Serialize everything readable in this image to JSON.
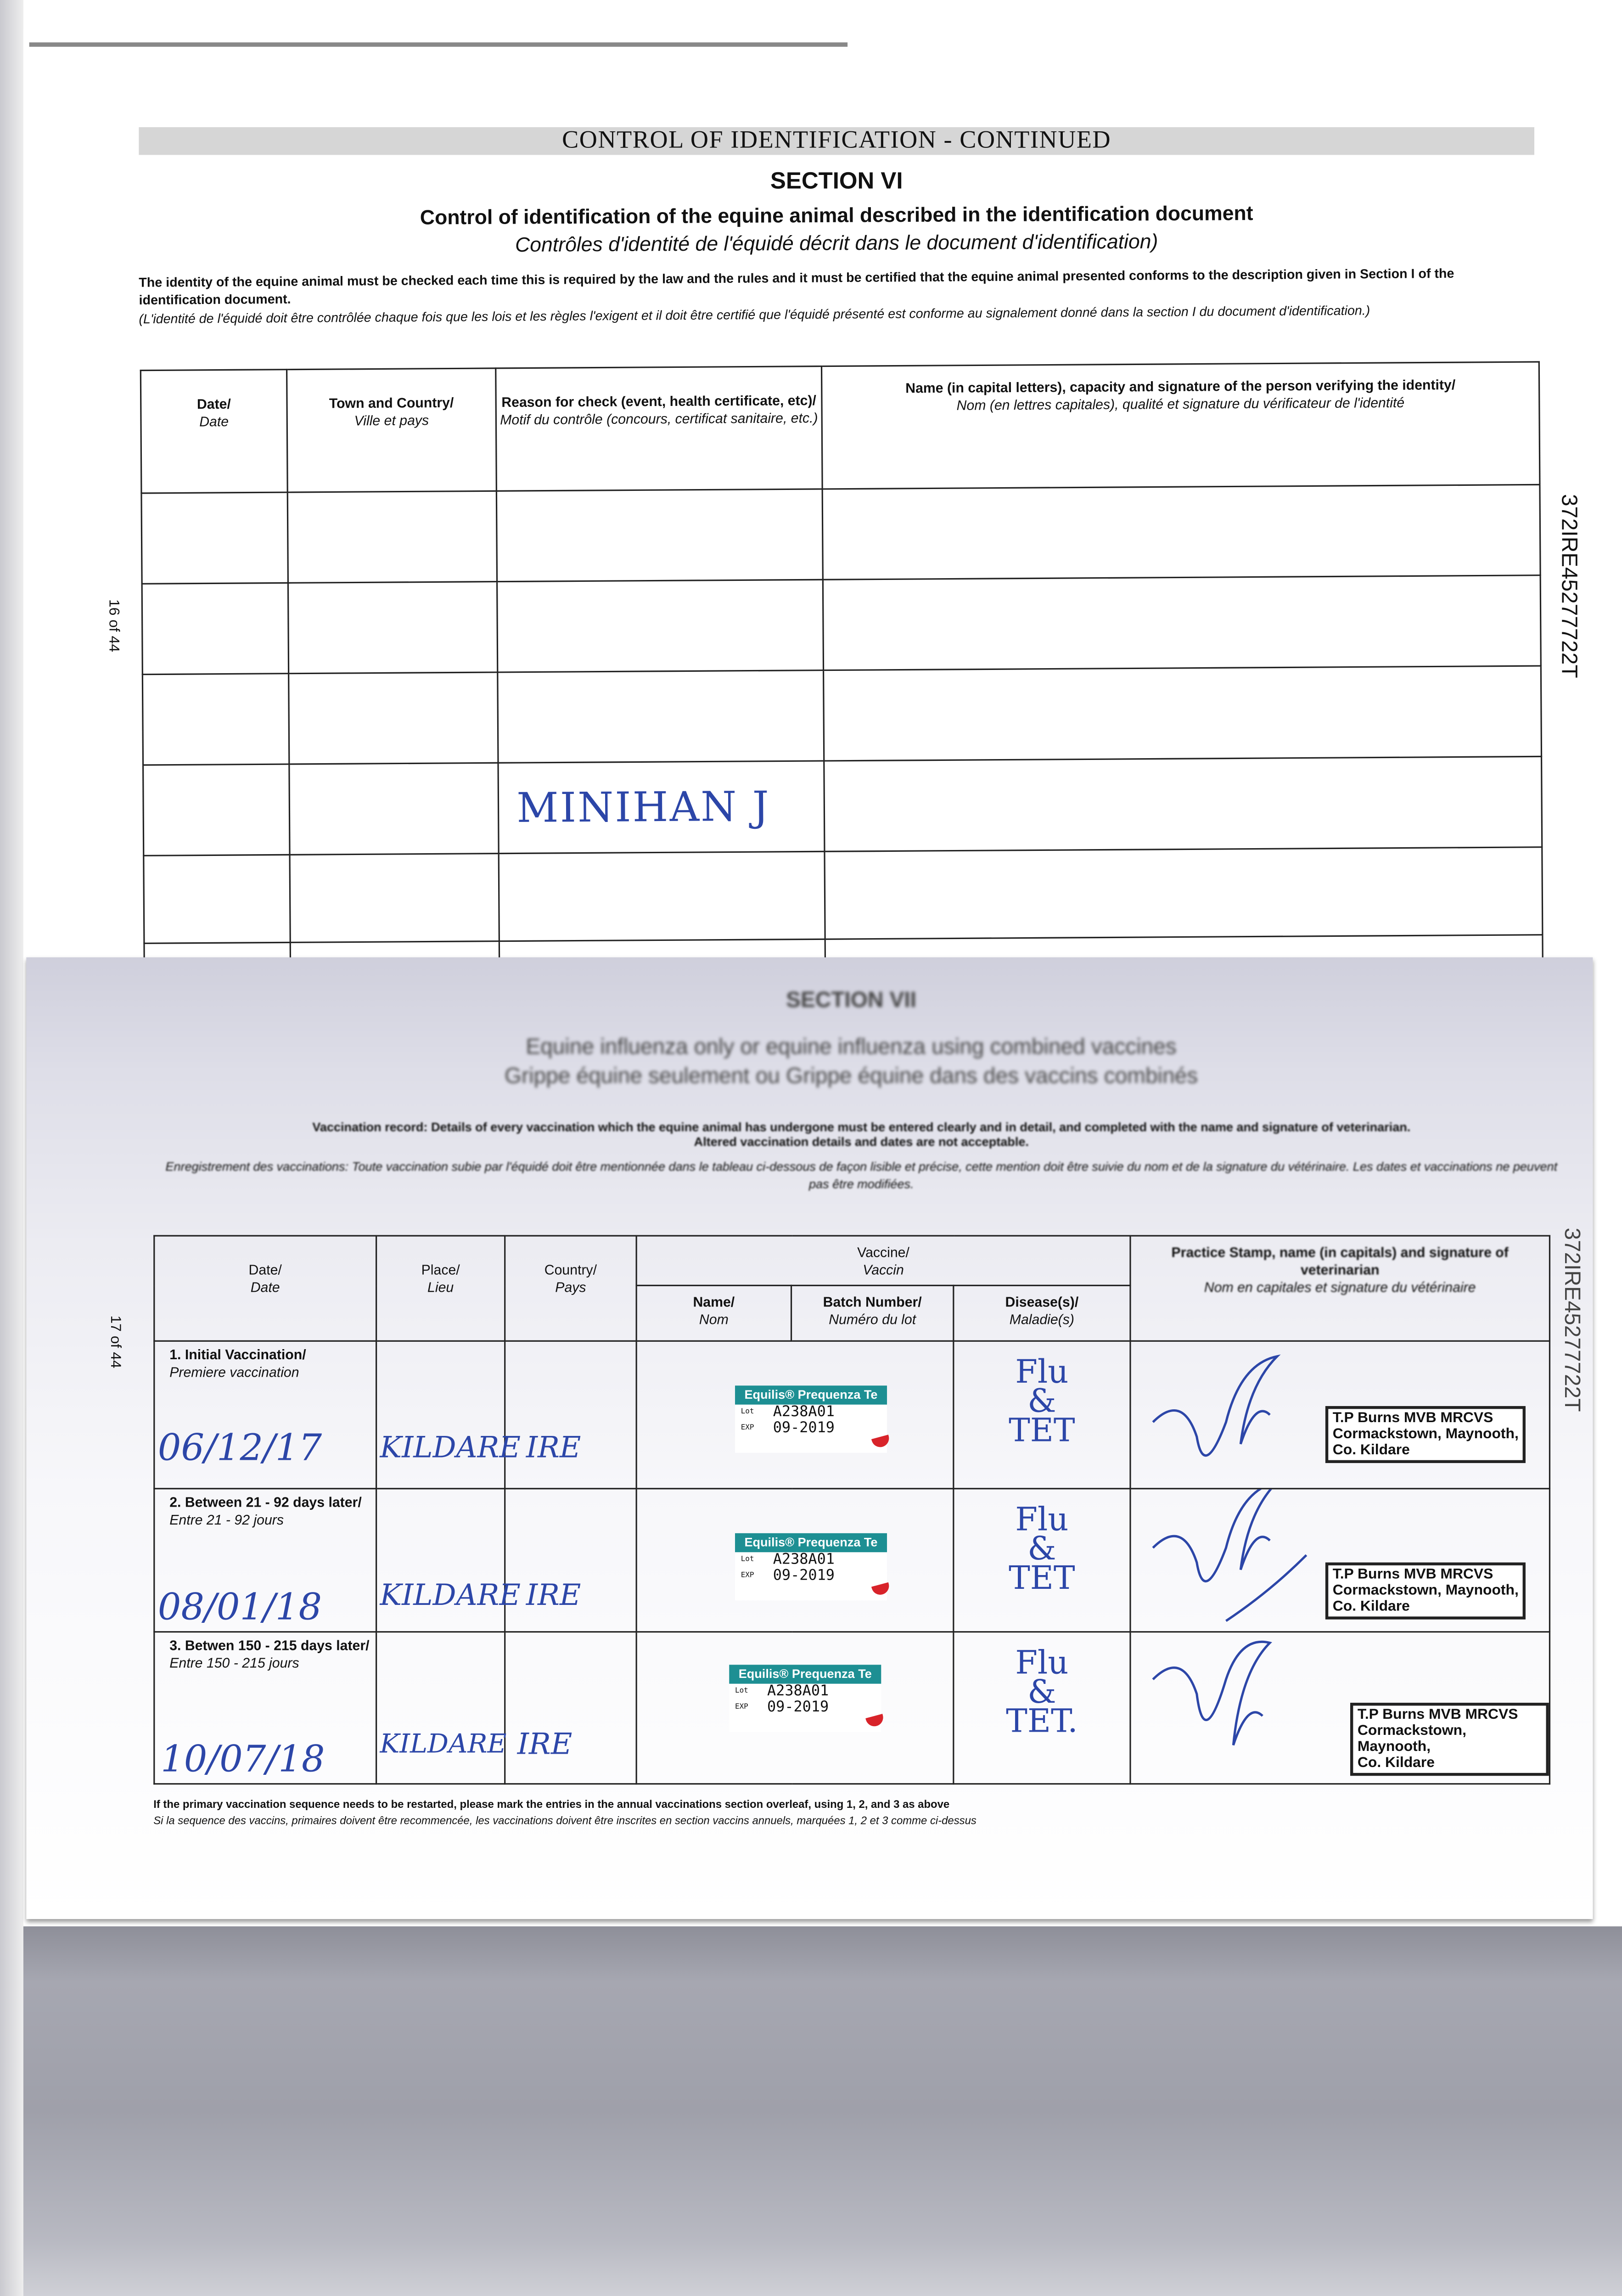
{
  "page1": {
    "banner": "CONTROL OF IDENTIFICATION - CONTINUED",
    "section": "SECTION VI",
    "title_en": "Control of identification of the equine animal described in the identification document",
    "title_fr": "Contrôles d'identité de l'équidé décrit dans le document d'identification)",
    "para_en": "The identity of the equine animal must be checked each time this is required by the law and the rules and it must be certified that the equine animal presented conforms to the description given in Section I of the identification document.",
    "para_fr": "(L'identité de l'équidé doit être contrôlée chaque fois que les lois et les règles l'exigent et il doit être certifié que l'équidé présenté est conforme au signalement donné dans la section I du document d'identification.)",
    "page_number": "16 of 44",
    "side_id": "372IRE45277722T",
    "columns": [
      {
        "en": "Date/",
        "fr": "Date"
      },
      {
        "en": "Town and Country/",
        "fr": "Ville et pays"
      },
      {
        "en": "Reason for check (event, health certificate, etc)/",
        "fr": "Motif du contrôle (concours, certificat sanitaire, etc.)"
      },
      {
        "en": "Name (in capital letters), capacity and signature of the person verifying the identity/",
        "fr": "Nom (en lettres capitales), qualité et signature du vérificateur de l'identité"
      }
    ],
    "handwritten_signature": "MINIHAN J"
  },
  "page2": {
    "section": "SECTION VII",
    "title_en": "Equine influenza only or equine influenza using combined vaccines",
    "title_fr": "Grippe équine seulement ou Grippe équine dans des vaccins combinés",
    "record_en_1": "Vaccination record: Details of every vaccination which the equine animal has undergone must be entered clearly and in detail, and completed with the name and signature of veterinarian.",
    "record_en_2": "Altered vaccination details and dates are not acceptable.",
    "record_fr": "Enregistrement des vaccinations: Toute vaccination subie par l'équidé doit être mentionnée dans le tableau ci-dessous de façon lisible et précise, cette mention doit être suivie du nom et de la signature du vétérinaire. Les dates et vaccinations ne peuvent pas être modifiées.",
    "page_number": "17 of 44",
    "side_id": "372IRE45277722T",
    "headers": {
      "date": {
        "en": "Date/",
        "fr": "Date"
      },
      "place": {
        "en": "Place/",
        "fr": "Lieu"
      },
      "country": {
        "en": "Country/",
        "fr": "Pays"
      },
      "vaccine": {
        "en": "Vaccine/",
        "fr": "Vaccin"
      },
      "name": {
        "en": "Name/",
        "fr": "Nom"
      },
      "batch": {
        "en": "Batch Number/",
        "fr": "Numéro du lot"
      },
      "disease": {
        "en": "Disease(s)/",
        "fr": "Maladie(s)"
      },
      "stamp": {
        "en": "Practice Stamp, name (in capitals) and signature of veterinarian",
        "fr": "Nom en capitales et signature du vétérinaire"
      }
    },
    "rows": [
      {
        "label_en": "1. Initial Vaccination/",
        "label_fr": "Premiere vaccination",
        "date": "06/12/17",
        "place": "KILDARE",
        "country": "IRE",
        "sticker": {
          "brand": "Equilis® Prequenza Te",
          "lot_key": "Lot",
          "lot": "A238A01",
          "exp_key": "EXP",
          "exp": "09-2019"
        },
        "disease_1": "Flu",
        "disease_2": "&",
        "disease_3": "TET",
        "stamp": [
          "T.P Burns MVB MRCVS",
          "Cormackstown, Maynooth,",
          "Co. Kildare"
        ]
      },
      {
        "label_en": "2. Between 21 - 92 days later/",
        "label_fr": "Entre 21 - 92 jours",
        "date": "08/01/18",
        "place": "KILDARE",
        "country": "IRE",
        "sticker": {
          "brand": "Equilis® Prequenza Te",
          "lot_key": "Lot",
          "lot": "A238A01",
          "exp_key": "EXP",
          "exp": "09-2019"
        },
        "disease_1": "Flu",
        "disease_2": "&",
        "disease_3": "TET",
        "stamp": [
          "T.P Burns MVB MRCVS",
          "Cormackstown, Maynooth,",
          "Co. Kildare"
        ]
      },
      {
        "label_en": "3. Betwen 150 - 215 days later/",
        "label_fr": "Entre 150 - 215 jours",
        "date": "10/07/18",
        "place": "KILDARE",
        "country": "IRE",
        "sticker": {
          "brand": "Equilis® Prequenza Te",
          "lot_key": "Lot",
          "lot": "A238A01",
          "exp_key": "EXP",
          "exp": "09-2019"
        },
        "disease_1": "Flu",
        "disease_2": "&",
        "disease_3": "TET.",
        "stamp": [
          "T.P Burns MVB MRCVS",
          "Cormackstown, Maynooth,",
          "Co. Kildare"
        ]
      }
    ],
    "footnote_en": "If the primary vaccination sequence needs to be restarted, please mark the entries in the annual vaccinations section overleaf, using 1, 2, and 3 as above",
    "footnote_fr": "Si la sequence des vaccins, primaires doivent être recommencée, les vaccinations doivent être inscrites en section vaccins annuels, marquées 1, 2 et 3 comme ci-dessus"
  },
  "colors": {
    "sticker_teal": "#1d8f93",
    "ink_blue": "#2c46a8",
    "sticker_red": "#d8232a"
  }
}
